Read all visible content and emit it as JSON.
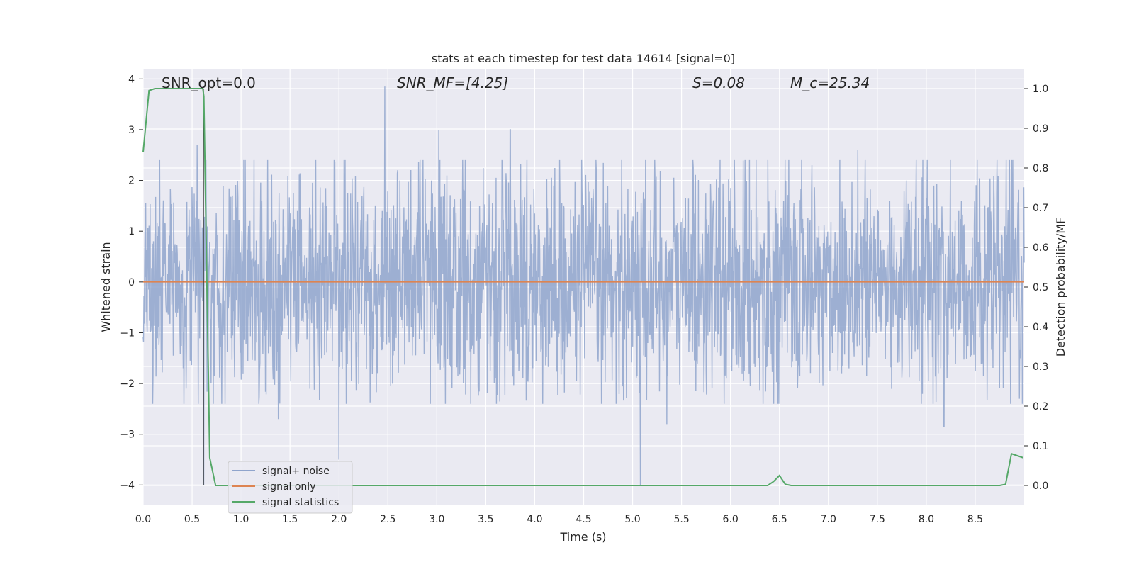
{
  "chart_data": {
    "type": "line",
    "title": "stats at each timestep for test data 14614 [signal=0]",
    "xlabel": "Time (s)",
    "ylabel_left": "Whitened strain",
    "ylabel_right": "Detection probability/MF",
    "xlim": [
      0.0,
      9.0
    ],
    "ylim_left": [
      -4.4,
      4.2
    ],
    "ylim_right": [
      -0.05,
      1.05
    ],
    "x_ticks": [
      "0.0",
      "0.5",
      "1.0",
      "1.5",
      "2.0",
      "2.5",
      "3.0",
      "3.5",
      "4.0",
      "4.5",
      "5.0",
      "5.5",
      "6.0",
      "6.5",
      "7.0",
      "7.5",
      "8.0",
      "8.5"
    ],
    "y_left_ticks": [
      "4",
      "3",
      "2",
      "1",
      "0",
      "−1",
      "−2",
      "−3",
      "−4"
    ],
    "y_right_ticks": [
      "1.0",
      "0.9",
      "0.8",
      "0.7",
      "0.6",
      "0.5",
      "0.4",
      "0.3",
      "0.2",
      "0.1",
      "0.0"
    ],
    "grid": true,
    "legend_position": "lower-left",
    "annotations": {
      "snr_opt": "SNR_opt=0.0",
      "snr_mf": "SNR_MF=[4.25]",
      "s_value": "S=0.08",
      "mc_value": "M_c=25.34"
    },
    "series": [
      {
        "name": "signal+ noise",
        "color": "#8fa4cc",
        "axis": "left",
        "description_level": "whitened noise roughly between -2.5 and 2.5 with spikes up to 3.85 near t=2.47 and down to -4.0 near t=5.08",
        "amplitude_envelope": 2.0,
        "spikes": [
          {
            "x": 0.55,
            "y": 2.7
          },
          {
            "x": 0.62,
            "y": -4.0
          },
          {
            "x": 1.38,
            "y": -2.7
          },
          {
            "x": 2.0,
            "y": -3.5
          },
          {
            "x": 2.47,
            "y": 3.85
          },
          {
            "x": 2.6,
            "y": 2.2
          },
          {
            "x": 3.02,
            "y": 3.0
          },
          {
            "x": 3.75,
            "y": 3.0
          },
          {
            "x": 5.08,
            "y": -4.0
          },
          {
            "x": 5.35,
            "y": -2.8
          },
          {
            "x": 7.3,
            "y": 2.6
          },
          {
            "x": 8.18,
            "y": -2.85
          },
          {
            "x": 8.95,
            "y": -2.3
          }
        ]
      },
      {
        "name": "signal only",
        "color": "#dd8452",
        "axis": "left",
        "x": [
          0.0,
          9.0
        ],
        "y": [
          0.0,
          0.0
        ]
      },
      {
        "name": "signal statistics",
        "color": "#55a868",
        "axis": "right",
        "x": [
          0.0,
          0.06,
          0.12,
          0.2,
          0.3,
          0.45,
          0.55,
          0.61,
          0.62,
          0.68,
          0.74,
          0.8,
          1.5,
          3.0,
          5.0,
          6.2,
          6.38,
          6.44,
          6.5,
          6.56,
          6.62,
          7.5,
          8.5,
          8.75,
          8.81,
          8.87,
          8.93,
          8.99
        ],
        "y": [
          0.84,
          0.995,
          1.0,
          1.0,
          1.0,
          1.0,
          1.0,
          1.0,
          0.98,
          0.07,
          0.0,
          0.0,
          0.0,
          0.0,
          0.0,
          0.0,
          0.0,
          0.01,
          0.025,
          0.003,
          0.0,
          0.0,
          0.0,
          0.0,
          0.003,
          0.08,
          0.075,
          0.07
        ]
      }
    ],
    "vertical_marker": {
      "x": 0.615,
      "color": "#333333"
    }
  }
}
